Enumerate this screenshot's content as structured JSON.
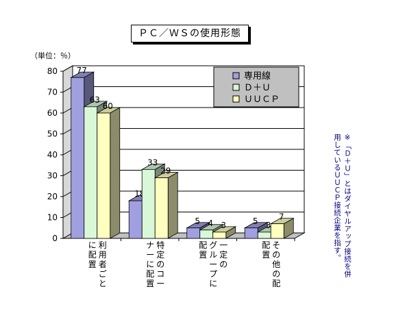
{
  "chart_data": {
    "type": "bar",
    "title": "ＰＣ／ＷＳの使用形態",
    "unit_label": "（単位：％）",
    "categories": [
      "利用者ごとに配置",
      "特定のコーナーに配置",
      "一定のグループに配置",
      "その他の配置"
    ],
    "category_lines": [
      [
        "利用者ごと",
        "に配置"
      ],
      [
        "特定のコー",
        "ナーに配置"
      ],
      [
        "一定の",
        "グループに",
        "配置"
      ],
      [
        "その他の配",
        "配置"
      ]
    ],
    "series": [
      {
        "name": "専用線",
        "values": [
          77,
          18,
          5,
          5
        ],
        "color": "#a0a0e0"
      },
      {
        "name": "Ｄ＋Ｕ",
        "values": [
          63,
          33,
          4,
          3
        ],
        "color": "#d8f8d8"
      },
      {
        "name": "ＵＵＣＰ",
        "values": [
          60,
          29,
          3,
          7
        ],
        "color": "#ffffc0"
      }
    ],
    "ylim": [
      0,
      80
    ],
    "yticks": [
      0,
      10,
      20,
      30,
      40,
      50,
      60,
      70,
      80
    ],
    "grid": true,
    "legend": "top-right",
    "note_lines": [
      "※「Ｄ＋Ｕ」とはダイヤルアップ接続を併",
      "用しているＵＵＣＰ接続企業を指す。"
    ]
  }
}
